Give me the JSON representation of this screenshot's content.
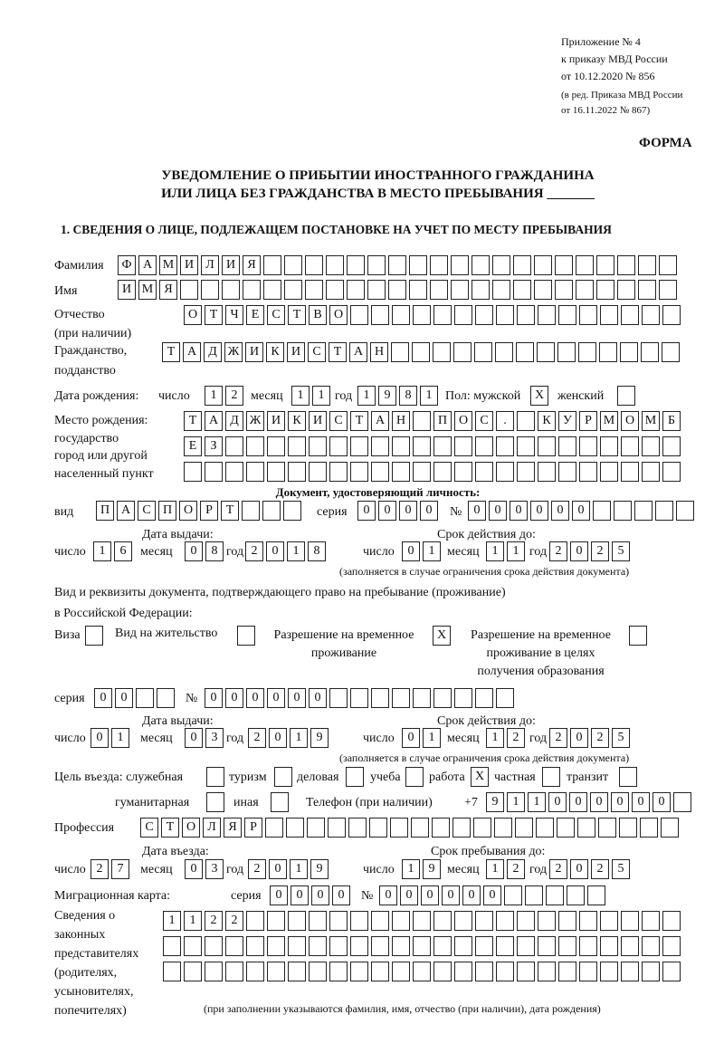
{
  "header": {
    "appendix": "Приложение № 4",
    "order": "к приказу МВД России",
    "date": "от 10.12.2020 № 856",
    "amend1": "(в ред. Приказа МВД России",
    "amend2": "от 16.11.2022 № 867)",
    "form": "ФОРМА",
    "title1": "УВЕДОМЛЕНИЕ О ПРИБЫТИИ ИНОСТРАННОГО ГРАЖДАНИНА",
    "title2": "ИЛИ ЛИЦА БЕЗ ГРАЖДАНСТВА В МЕСТО ПРЕБЫВАНИЯ _______",
    "section1": "1. СВЕДЕНИЯ О ЛИЦЕ, ПОДЛЕЖАЩЕМ ПОСТАНОВКЕ НА УЧЕТ ПО МЕСТУ ПРЕБЫВАНИЯ"
  },
  "labels": {
    "surname": "Фамилия",
    "name": "Имя",
    "patronymic1": "Отчество",
    "patronymic2": "(при наличии)",
    "citizenship1": "Гражданство,",
    "citizenship2": "подданство",
    "dob": "Дата рождения:",
    "day": "число",
    "month": "месяц",
    "year": "год",
    "sex": "Пол: мужской",
    "female": "женский",
    "pob1": "Место рождения:",
    "pob2": "государство",
    "pob3": "город или другой",
    "pob4": "населенный пункт",
    "id_doc": "Документ, удостоверяющий личность:",
    "kind": "вид",
    "series": "серия",
    "number": "№",
    "issue_date": "Дата выдачи:",
    "valid_until": "Срок действия до:",
    "validity_note": "(заполняется в случае ограничения срока действия документа)",
    "right_doc1": "Вид и реквизиты документа, подтверждающего право на пребывание (проживание)",
    "right_doc2": "в Российской Федерации:",
    "visa": "Виза",
    "residence": "Вид на жительство",
    "trp1": "Разрешение на временное",
    "trp2": "проживание",
    "trp_edu1": "Разрешение на временное",
    "trp_edu2": "проживание в целях",
    "trp_edu3": "получения образования",
    "purpose": "Цель въезда: служебная",
    "tourism": "туризм",
    "business": "деловая",
    "study": "учеба",
    "work": "работа",
    "private": "частная",
    "transit": "транзит",
    "humanitarian": "гуманитарная",
    "other": "иная",
    "phone": "Телефон (при наличии)",
    "phone_prefix": "+7",
    "profession": "Профессия",
    "entry_date": "Дата въезда:",
    "stay_until": "Срок пребывания до:",
    "migration_card": "Миграционная карта:",
    "rep1": "Сведения о",
    "rep2": "законных",
    "rep3": "представителях",
    "rep4": "(родителях,",
    "rep5": "усыновителях,",
    "rep6": "попечителях)",
    "rep_note": "(при заполнении указываются фамилия, имя, отчество (при наличии), дата рождения)"
  },
  "person": {
    "surname": "ФАМИЛИЯ",
    "name": "ИМЯ",
    "patronymic": "ОТЧЕСТВО",
    "citizenship": "ТАДЖИКИСТАН",
    "dob_day": "12",
    "dob_month": "11",
    "dob_year": "1981",
    "sex_male": "X",
    "sex_female": "",
    "pob_line1": "ТАДЖИКИСТАН ПОС. КУРМОМБ",
    "pob_line2": "ЕЗ",
    "pob_line3": ""
  },
  "id_document": {
    "kind": "ПАСПОРТ",
    "series": "0000",
    "number": "000000",
    "issue_day": "16",
    "issue_month": "08",
    "issue_year": "2018",
    "valid_day": "01",
    "valid_month": "11",
    "valid_year": "2025"
  },
  "right_document": {
    "visa": "",
    "residence": "",
    "trp": "X",
    "trp_edu": "",
    "series": "00",
    "number": "000000",
    "issue_day": "01",
    "issue_month": "03",
    "issue_year": "2019",
    "valid_day": "01",
    "valid_month": "12",
    "valid_year": "2025"
  },
  "purpose": {
    "official": "",
    "tourism": "",
    "business": "",
    "study": "",
    "work": "X",
    "private": "",
    "transit": "",
    "humanitarian": "",
    "other": ""
  },
  "phone": "911000000",
  "profession": "СТОЛЯР",
  "entry": {
    "day": "27",
    "month": "03",
    "year": "2019",
    "stay_day": "19",
    "stay_month": "12",
    "stay_year": "2025"
  },
  "migration_card": {
    "series": "0000",
    "number": "000000"
  },
  "representatives": {
    "line1": "1122",
    "line2": "",
    "line3": ""
  }
}
